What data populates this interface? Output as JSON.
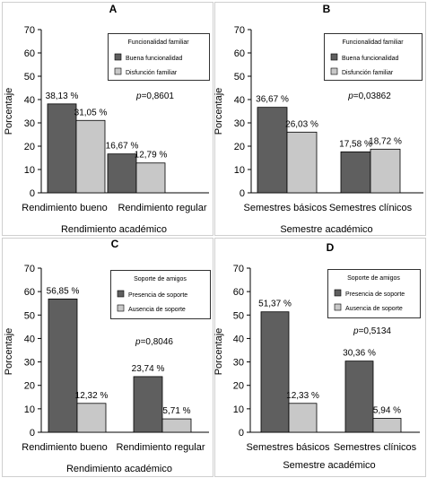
{
  "chart_data": [
    {
      "panel": "A",
      "type": "bar",
      "categories": [
        "Rendimiento bueno",
        "Rendimiento regular"
      ],
      "series": [
        {
          "name": "Buena funcionalidad",
          "color": "#5f5f5f",
          "values": [
            38.13,
            16.67
          ],
          "labels": [
            "38,13 %",
            "16,67 %"
          ]
        },
        {
          "name": "Disfunción familiar",
          "color": "#c8c8c8",
          "values": [
            31.05,
            12.79
          ],
          "labels": [
            "31,05 %",
            "12,79 %"
          ]
        }
      ],
      "ylabel": "Porcentaje",
      "xlabel": "Rendimiento académico",
      "ylim": [
        0,
        70
      ],
      "yticks": [
        0,
        10,
        20,
        30,
        40,
        50,
        60,
        70
      ],
      "legend_title": "Funcionalidad familiar",
      "legend_position": "top-right",
      "p_label": "p=0,8601"
    },
    {
      "panel": "B",
      "type": "bar",
      "categories": [
        "Semestres básicos",
        "Semestres clínicos"
      ],
      "series": [
        {
          "name": "Buena funcionalidad",
          "color": "#5f5f5f",
          "values": [
            36.67,
            17.58
          ],
          "labels": [
            "36,67 %",
            "17,58 %"
          ]
        },
        {
          "name": "Disfunción familiar",
          "color": "#c8c8c8",
          "values": [
            26.03,
            18.72
          ],
          "labels": [
            "26,03 %",
            "18,72 %"
          ]
        }
      ],
      "ylabel": "Porcentaje",
      "xlabel": "Semestre académico",
      "ylim": [
        0,
        70
      ],
      "yticks": [
        0,
        10,
        20,
        30,
        40,
        50,
        60,
        70
      ],
      "legend_title": "Funcionalidad familiar",
      "legend_position": "top-right",
      "p_label": "p=0,03862"
    },
    {
      "panel": "C",
      "type": "bar",
      "categories": [
        "Rendimiento bueno",
        "Rendimiento regular"
      ],
      "series": [
        {
          "name": "Presencia de soporte",
          "color": "#5f5f5f",
          "values": [
            56.85,
            23.74
          ],
          "labels": [
            "56,85 %",
            "23,74 %"
          ]
        },
        {
          "name": "Ausencia de soporte",
          "color": "#c8c8c8",
          "values": [
            12.32,
            5.71
          ],
          "labels": [
            "12,32 %",
            "5,71 %"
          ]
        }
      ],
      "ylabel": "Porcentaje",
      "xlabel": "Rendimiento académico",
      "ylim": [
        0,
        70
      ],
      "yticks": [
        0,
        10,
        20,
        30,
        40,
        50,
        60,
        70
      ],
      "legend_title": "Soporte de amigos",
      "legend_position": "top-right",
      "p_label": "p=0,8046"
    },
    {
      "panel": "D",
      "type": "bar",
      "categories": [
        "Semestres básicos",
        "Semestres clínicos"
      ],
      "series": [
        {
          "name": "Presencia de soporte",
          "color": "#5f5f5f",
          "values": [
            51.37,
            30.36
          ],
          "labels": [
            "51,37 %",
            "30,36 %"
          ]
        },
        {
          "name": "Ausencia de soporte",
          "color": "#c8c8c8",
          "values": [
            12.33,
            5.94
          ],
          "labels": [
            "12,33 %",
            "5,94 %"
          ]
        }
      ],
      "ylabel": "Porcentaje",
      "xlabel": "Semestre académico",
      "ylim": [
        0,
        70
      ],
      "yticks": [
        0,
        10,
        20,
        30,
        40,
        50,
        60,
        70
      ],
      "legend_title": "Soporte de amigos",
      "legend_position": "top-right",
      "p_label": "p=0,5134"
    }
  ]
}
